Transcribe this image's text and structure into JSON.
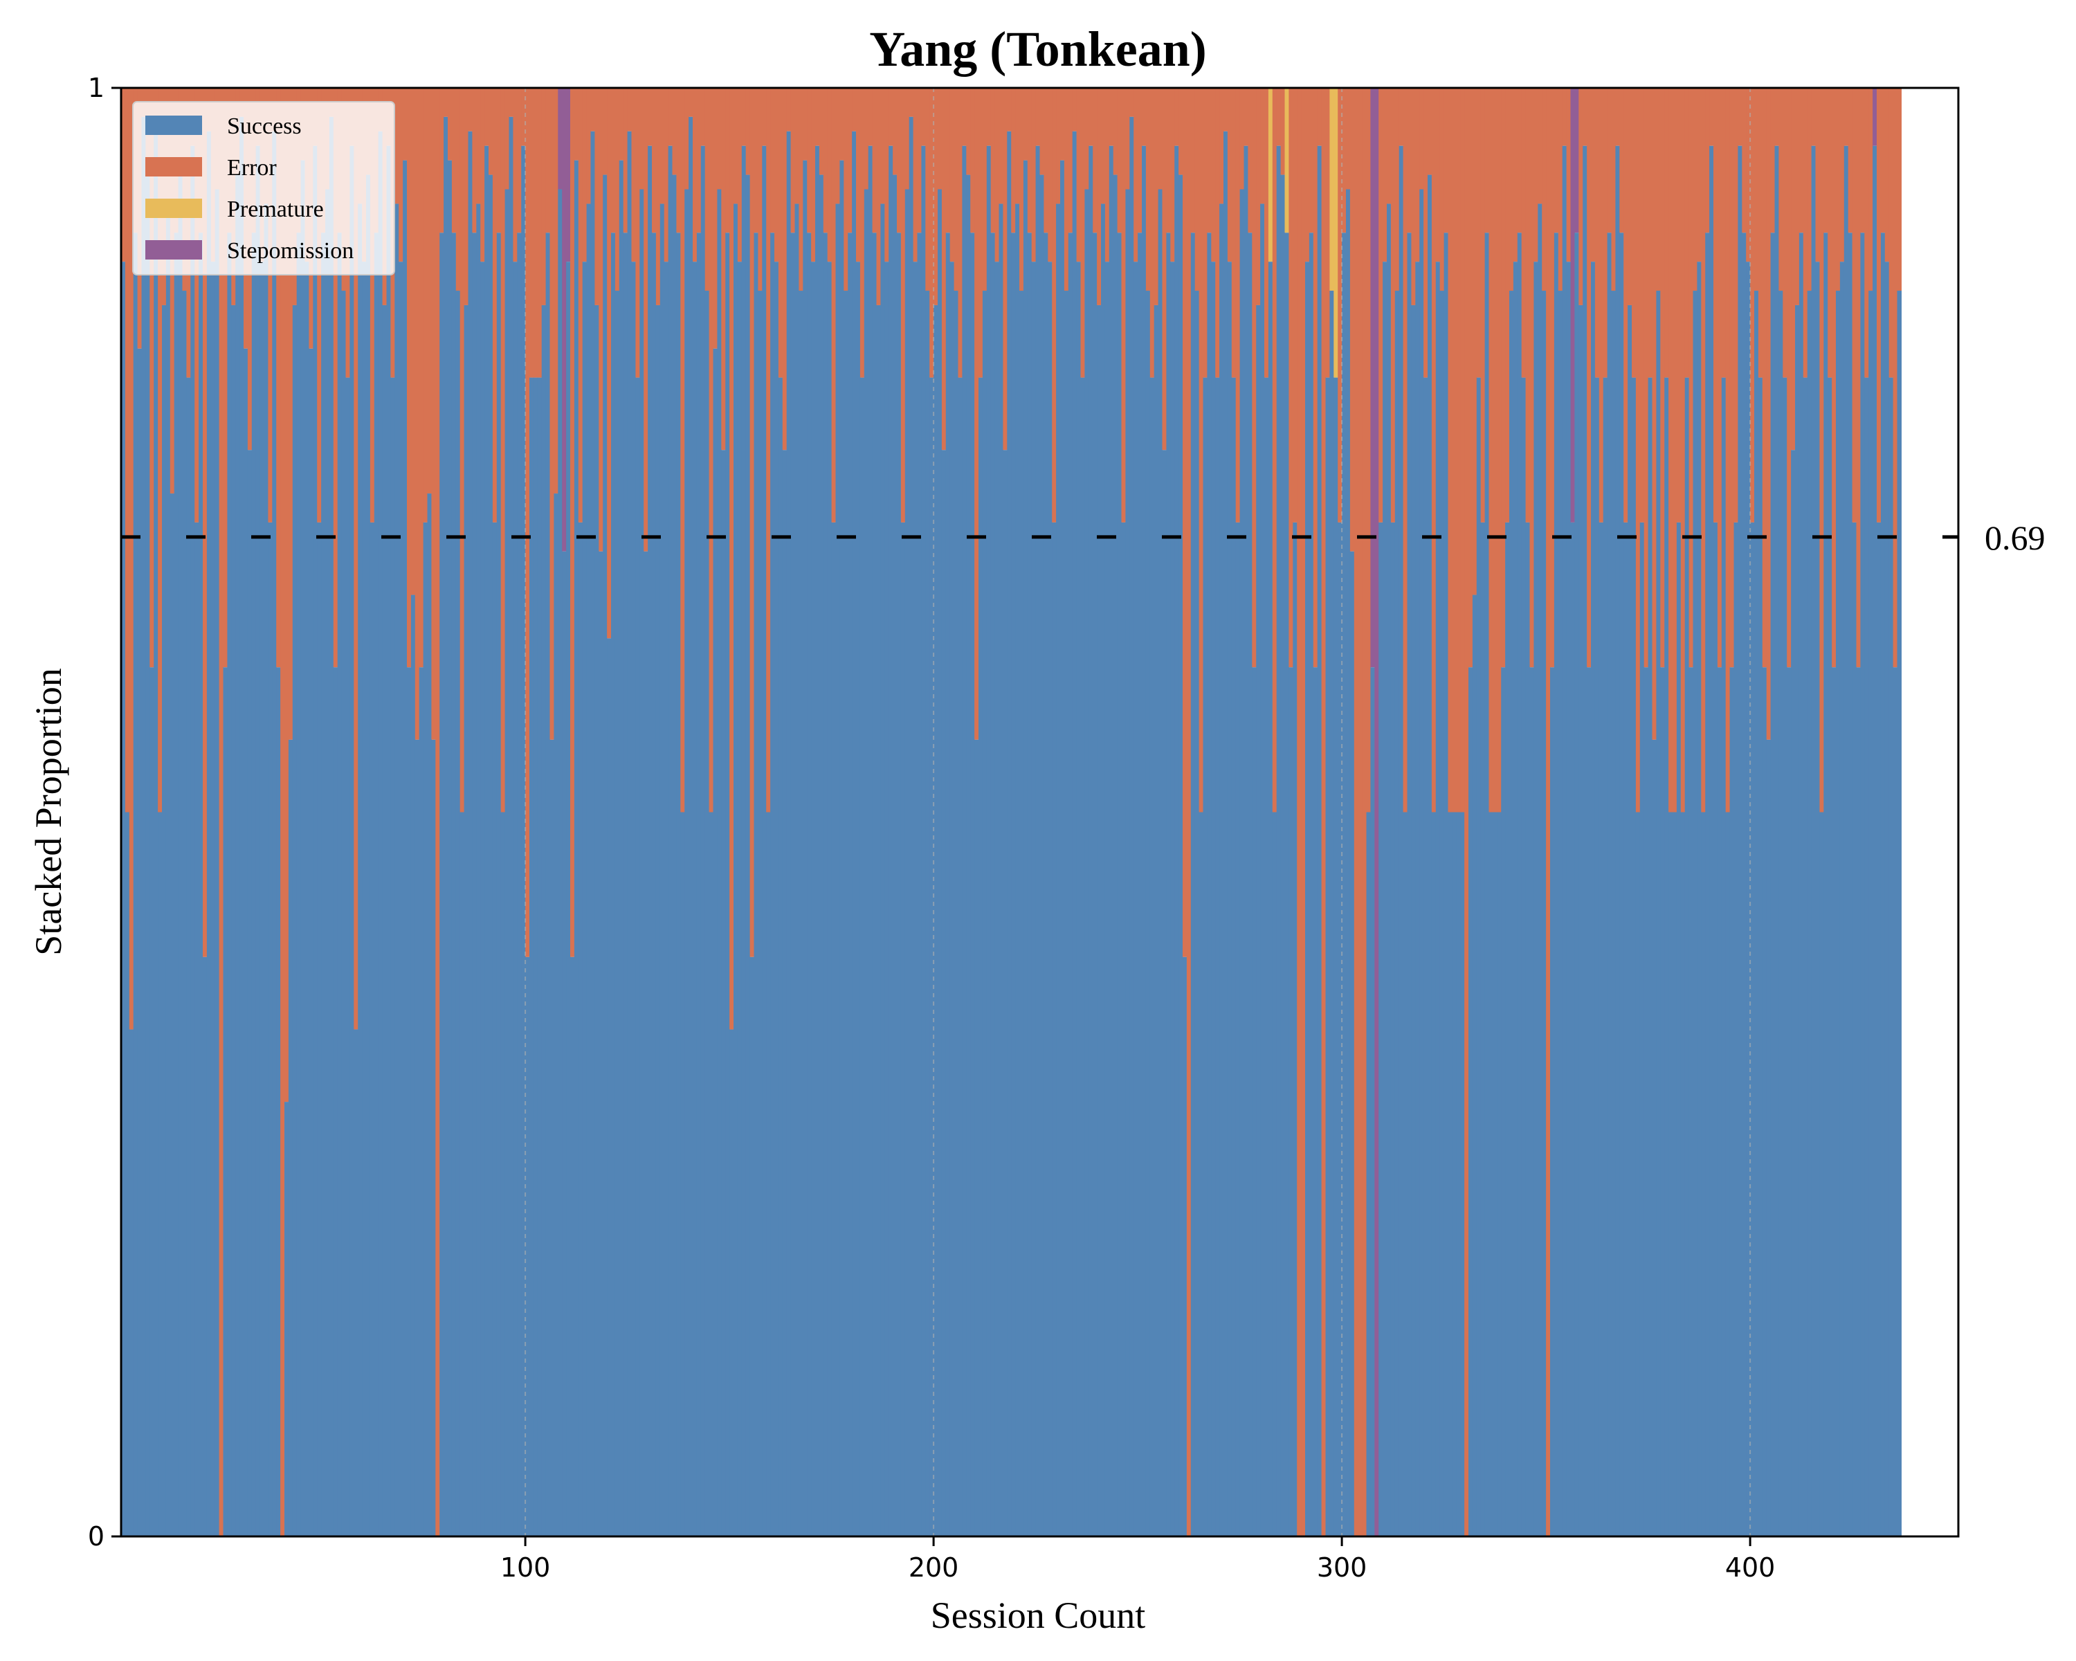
{
  "chart_data": {
    "type": "area",
    "title": "Yang (Tonkean)",
    "xlabel": "Session Count",
    "ylabel": "Stacked Proportion",
    "xlim": [
      1,
      451
    ],
    "ylim": [
      0,
      1
    ],
    "x_ticks": [
      100,
      200,
      300,
      400
    ],
    "x_tick_labels": [
      "100",
      "200",
      "300",
      "400"
    ],
    "y_ticks": [
      0,
      1
    ],
    "y_tick_labels": [
      "0",
      "1"
    ],
    "grid": "vertical dashed at x ticks",
    "legend_position": "top-left",
    "reference_line": {
      "y": 0.69,
      "label": "0.69",
      "style": "dashed",
      "color": "#000000"
    },
    "series": [
      {
        "name": "Success",
        "color": "#5385b6"
      },
      {
        "name": "Error",
        "color": "#d87352"
      },
      {
        "name": "Premature",
        "color": "#e8bb5b"
      },
      {
        "name": "Stepomission",
        "color": "#925e96"
      }
    ],
    "sessions": {
      "note_values": "per-session proportions, stacked Success→Error→Premature→Stepomission",
      "success": [
        0.88,
        0.5,
        0.35,
        0.9,
        0.82,
        0.98,
        0.94,
        0.6,
        0.97,
        0.5,
        0.85,
        0.92,
        0.72,
        0.9,
        0.95,
        0.86,
        0.8,
        0.96,
        0.7,
        0.9,
        0.4,
        0.97,
        0.88,
        0.93,
        0.0,
        0.6,
        0.9,
        0.85,
        0.94,
        0.98,
        0.82,
        0.75,
        0.9,
        0.96,
        0.88,
        0.92,
        0.7,
        0.97,
        0.6,
        0.0,
        0.3,
        0.55,
        0.85,
        0.9,
        0.95,
        0.88,
        0.82,
        0.96,
        0.7,
        0.9,
        0.93,
        0.98,
        0.6,
        0.9,
        0.86,
        0.8,
        0.96,
        0.35,
        0.92,
        0.88,
        0.94,
        0.7,
        0.9,
        0.97,
        0.85,
        0.96,
        0.8,
        0.92,
        0.88,
        0.95,
        0.6,
        0.65,
        0.55,
        0.6,
        0.7,
        0.72,
        0.55,
        0.0,
        0.9,
        0.98,
        0.95,
        0.9,
        0.86,
        0.5,
        0.85,
        0.97,
        0.9,
        0.92,
        0.88,
        0.96,
        0.94,
        0.7,
        0.9,
        0.5,
        0.93,
        0.98,
        0.88,
        0.9,
        0.96,
        0.4,
        0.8,
        0.8,
        0.8,
        0.85,
        0.9,
        0.55,
        0.72,
        0.93,
        0.68,
        0.88,
        0.4,
        0.95,
        0.7,
        0.88,
        0.92,
        0.97,
        0.85,
        0.68,
        0.94,
        0.62,
        0.9,
        0.86,
        0.95,
        0.9,
        0.97,
        0.88,
        0.8,
        0.93,
        0.68,
        0.96,
        0.9,
        0.85,
        0.92,
        0.88,
        0.96,
        0.94,
        0.9,
        0.5,
        0.93,
        0.98,
        0.88,
        0.9,
        0.96,
        0.86,
        0.5,
        0.82,
        0.93,
        0.75,
        0.9,
        0.35,
        0.92,
        0.88,
        0.96,
        0.94,
        0.4,
        0.9,
        0.86,
        0.96,
        0.5,
        0.9,
        0.88,
        0.8,
        0.75,
        0.97,
        0.9,
        0.92,
        0.86,
        0.95,
        0.9,
        0.88,
        0.96,
        0.94,
        0.9,
        0.88,
        0.7,
        0.92,
        0.95,
        0.86,
        0.9,
        0.97,
        0.88,
        0.8,
        0.93,
        0.96,
        0.9,
        0.85,
        0.92,
        0.88,
        0.96,
        0.94,
        0.9,
        0.7,
        0.93,
        0.98,
        0.88,
        0.9,
        0.96,
        0.86,
        0.8,
        0.85,
        0.93,
        0.75,
        0.9,
        0.88,
        0.86,
        0.8,
        0.96,
        0.94,
        0.9,
        0.55,
        0.8,
        0.86,
        0.96,
        0.9,
        0.88,
        0.92,
        0.75,
        0.97,
        0.9,
        0.92,
        0.86,
        0.95,
        0.9,
        0.88,
        0.96,
        0.94,
        0.9,
        0.88,
        0.7,
        0.92,
        0.95,
        0.86,
        0.9,
        0.97,
        0.88,
        0.8,
        0.93,
        0.96,
        0.9,
        0.85,
        0.92,
        0.88,
        0.96,
        0.94,
        0.9,
        0.7,
        0.93,
        0.98,
        0.88,
        0.9,
        0.96,
        0.86,
        0.8,
        0.85,
        0.93,
        0.75,
        0.9,
        0.88,
        0.96,
        0.94,
        0.4,
        0.0,
        0.9,
        0.86,
        0.5,
        0.8,
        0.9,
        0.88,
        0.8,
        0.92,
        0.97,
        0.88,
        0.8,
        0.7,
        0.93,
        0.96,
        0.9,
        0.6,
        0.85,
        0.92,
        0.8,
        0.88,
        0.5,
        0.96,
        0.94,
        0.9,
        0.6,
        0.7,
        0.0,
        0.0,
        0.88,
        0.9,
        0.6,
        0.96,
        0.0,
        0.8,
        0.86,
        0.8,
        0.7,
        0.9,
        0.93,
        0.68,
        0.0,
        0.0,
        0.0,
        0.5,
        0.6,
        0.0,
        0.7,
        0.88,
        0.92,
        0.7,
        0.86,
        0.96,
        0.5,
        0.9,
        0.85,
        0.88,
        0.93,
        0.8,
        0.94,
        0.5,
        0.88,
        0.86,
        0.9,
        0.5,
        0.5,
        0.5,
        0.5,
        0.0,
        0.6,
        0.65,
        0.8,
        0.7,
        0.9,
        0.5,
        0.5,
        0.5,
        0.6,
        0.7,
        0.86,
        0.88,
        0.9,
        0.8,
        0.7,
        0.6,
        0.88,
        0.92,
        0.86,
        0.0,
        0.6,
        0.9,
        0.86,
        0.96,
        0.88,
        0.7,
        0.9,
        0.85,
        0.96,
        0.6,
        0.88,
        0.8,
        0.7,
        0.8,
        0.9,
        0.86,
        0.96,
        0.9,
        0.7,
        0.85,
        0.8,
        0.5,
        0.7,
        0.6,
        0.8,
        0.55,
        0.86,
        0.6,
        0.8,
        0.5,
        0.5,
        0.7,
        0.5,
        0.8,
        0.6,
        0.86,
        0.88,
        0.5,
        0.9,
        0.96,
        0.7,
        0.6,
        0.8,
        0.5,
        0.6,
        0.7,
        0.96,
        0.9,
        0.88,
        0.7,
        0.86,
        0.8,
        0.6,
        0.55,
        0.9,
        0.96,
        0.86,
        0.8,
        0.6,
        0.75,
        0.85,
        0.9,
        0.8,
        0.86,
        0.96,
        0.88,
        0.5,
        0.9,
        0.8,
        0.6,
        0.86,
        0.88,
        0.96,
        0.9,
        0.7,
        0.6,
        0.9,
        0.8,
        0.86,
        0.96,
        0.7,
        0.9,
        0.88,
        0.8,
        0.6,
        0.86
      ],
      "premature_sessions": [
        282,
        286,
        297,
        298
      ],
      "stepomission_sessions": [
        108,
        109,
        110,
        307,
        308,
        356,
        357,
        430
      ]
    }
  }
}
